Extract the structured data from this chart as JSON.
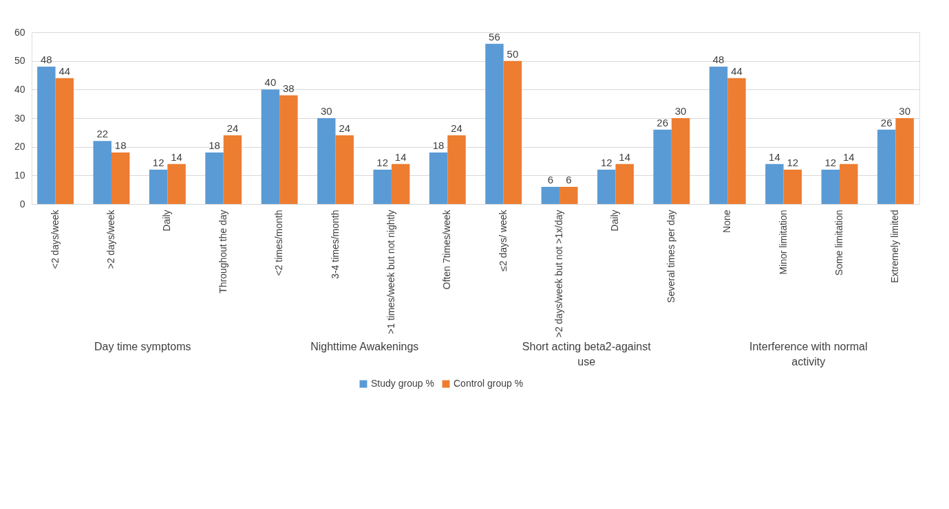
{
  "chart_data": {
    "type": "bar",
    "categories": [
      "<2 days/week",
      ">2 days/week",
      "Daily",
      "Throughout the day",
      "<2 times/month",
      "3-4 times/month",
      ">1 times/week but not nightly",
      "Often 7times/week",
      "≤2 days/ week",
      ">2 days/week but not >1x/day",
      "Daily",
      "Several times per day",
      "None",
      "Minor limitation",
      "Some limitation",
      "Extremely limited"
    ],
    "series": [
      {
        "name": "Study group %",
        "color": "#5b9bd5",
        "values": [
          48,
          22,
          12,
          18,
          40,
          30,
          12,
          18,
          56,
          6,
          12,
          26,
          48,
          14,
          12,
          26
        ]
      },
      {
        "name": "Control group %",
        "color": "#ed7d31",
        "values": [
          44,
          18,
          14,
          24,
          38,
          24,
          14,
          24,
          50,
          6,
          14,
          30,
          44,
          12,
          14,
          30
        ]
      }
    ],
    "annotations": [
      "Day time symptoms",
      "Nighttime Awakenings",
      "Short acting beta2-against\nuse",
      "Interference with normal\nactivity"
    ],
    "ylim": [
      0,
      60
    ],
    "yticks": [
      0,
      10,
      20,
      30,
      40,
      50,
      60
    ],
    "grid": "y",
    "legend": "bottom",
    "data_labels": true
  }
}
